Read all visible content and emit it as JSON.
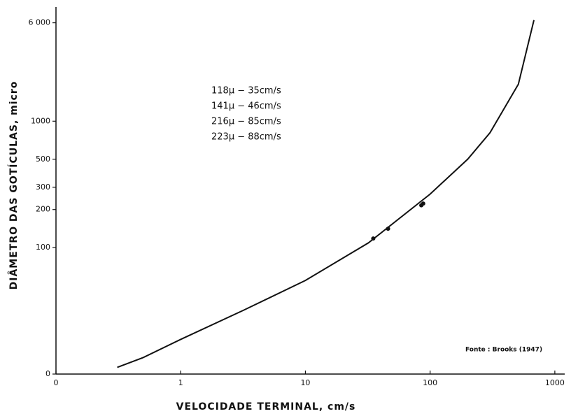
{
  "chart_data": {
    "type": "line",
    "xlabel": "VELOCIDADE TERMINAL, cm/s",
    "ylabel": "DIÂMETRO DAS GOTÍCULAS, micro",
    "xscale": "log",
    "yscale": "log",
    "xlim": [
      0.1,
      1200
    ],
    "ylim": [
      10,
      8000
    ],
    "xticks": [
      {
        "value": 0.1,
        "label": "0"
      },
      1,
      10,
      100,
      1000
    ],
    "yticks": [
      {
        "value": 10,
        "label": "0"
      },
      100,
      200,
      300,
      500,
      1000,
      {
        "value": 6000,
        "label": "6 000"
      }
    ],
    "series": [
      {
        "color": "#111111",
        "x": [
          0.31,
          0.5,
          1,
          3.2,
          10,
          32,
          100,
          200,
          302,
          510,
          680
        ],
        "values": [
          11.3,
          13.5,
          18.8,
          32,
          55,
          109,
          265,
          500,
          810,
          1960,
          6300
        ]
      }
    ],
    "points": {
      "color": "#111111",
      "x": [
        35,
        46,
        85,
        88
      ],
      "values": [
        118,
        141,
        216,
        223
      ]
    },
    "annotations": [
      "118μ − 35cm/s",
      "141μ − 46cm/s",
      "216μ − 85cm/s",
      "223μ − 88cm/s"
    ],
    "source": "Fonte : Brooks (1947)"
  }
}
